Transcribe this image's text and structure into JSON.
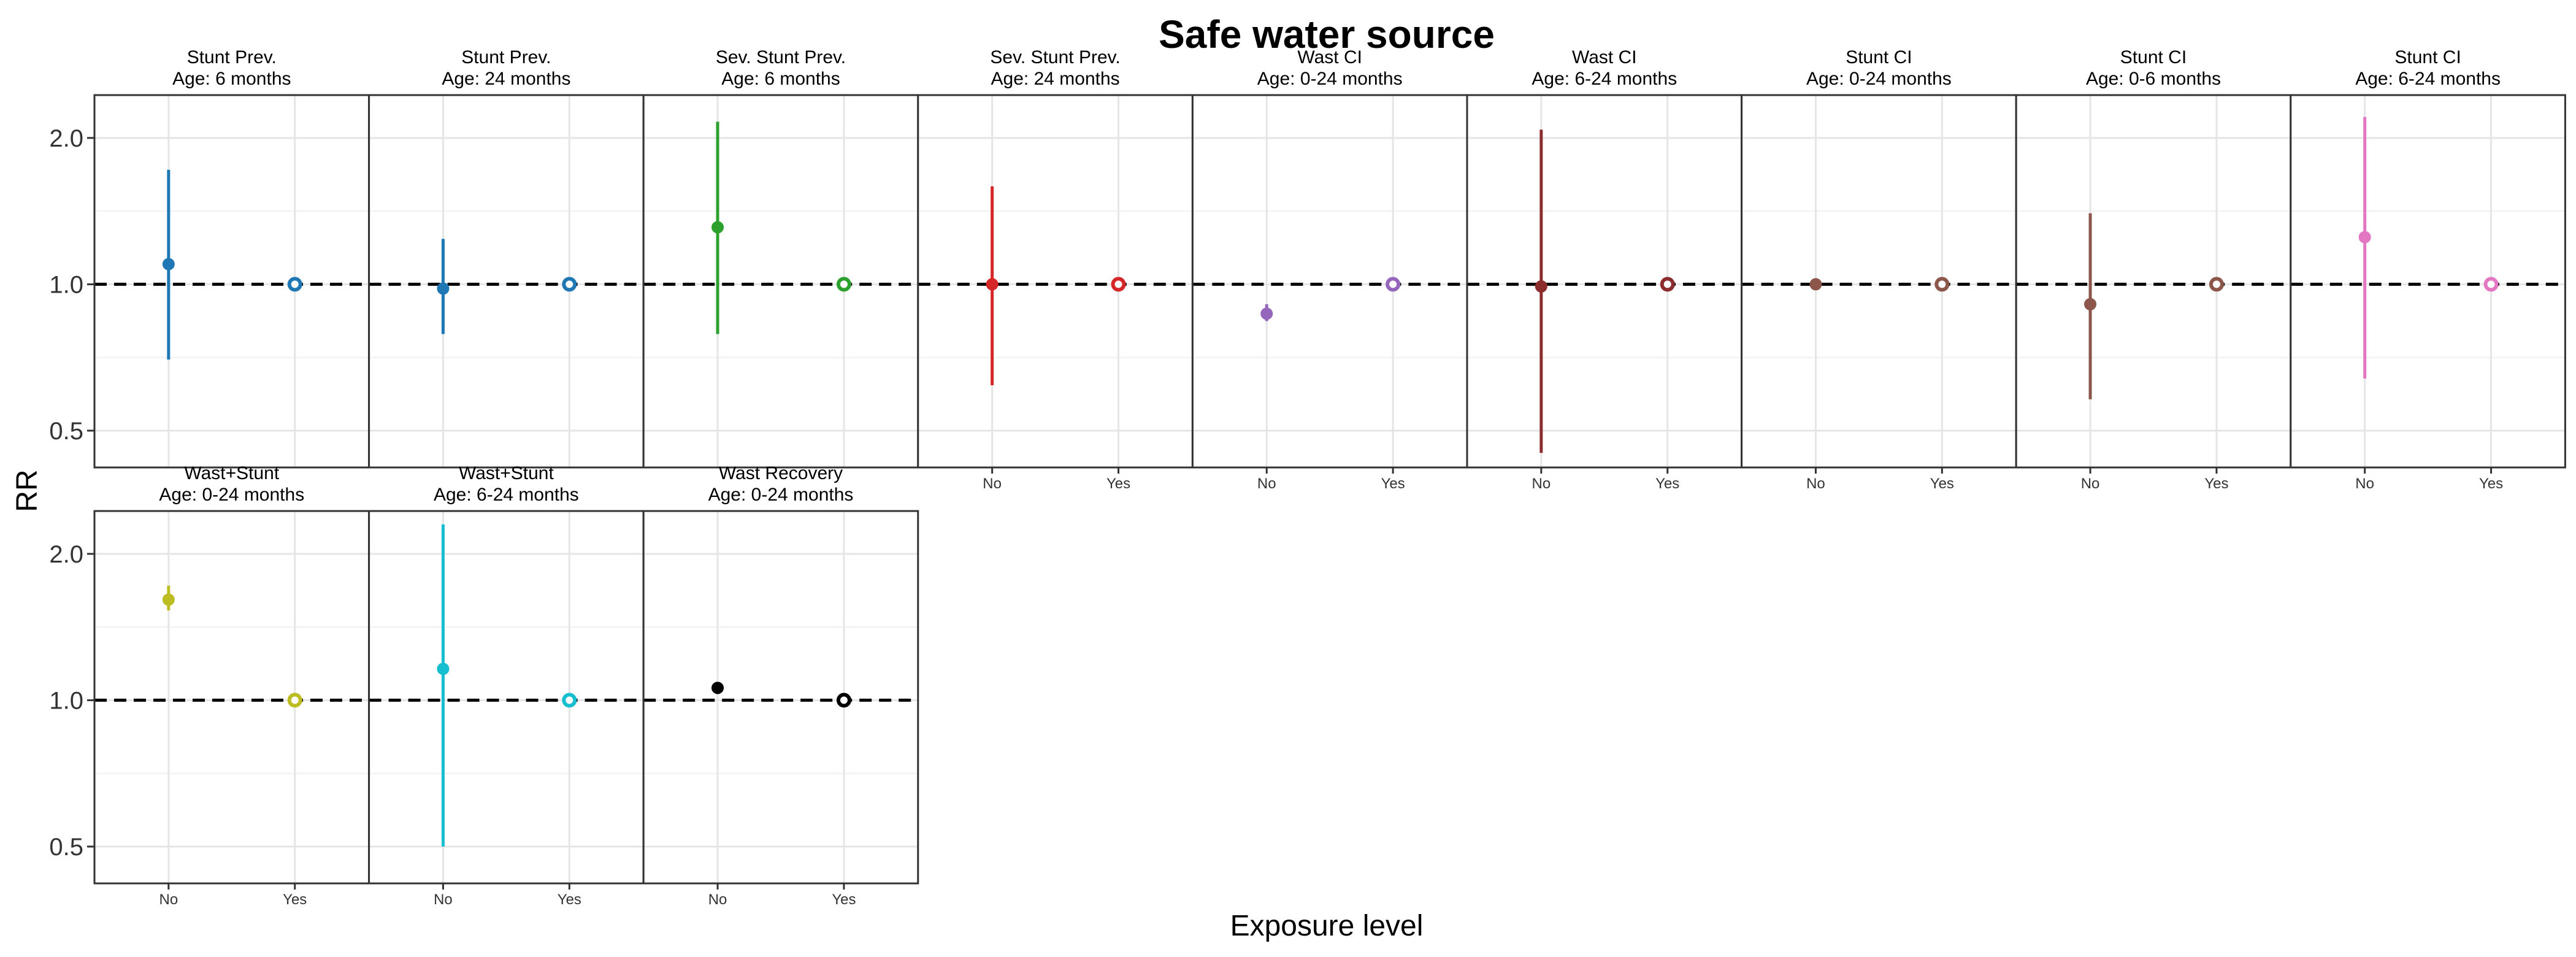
{
  "chart_data": {
    "type": "scatter",
    "title": "Safe water source",
    "xlabel": "Exposure level",
    "ylabel": "RR",
    "y_scale": "log",
    "ylim": [
      0.42,
      2.45
    ],
    "y_ticks": [
      "0.5",
      "1.0",
      "2.0"
    ],
    "y_tick_values": [
      0.5,
      1.0,
      2.0
    ],
    "x_categories": [
      "No",
      "Yes"
    ],
    "reference_line": 1.0,
    "grid": true,
    "legend": "none",
    "panels": [
      {
        "strip": [
          "Stunt Prev.",
          "Age: 6 months"
        ],
        "color": "#1f77b4",
        "points": [
          {
            "x": "No",
            "rr": 1.1,
            "lo": 0.7,
            "hi": 1.72
          },
          {
            "x": "Yes",
            "rr": 1.0,
            "lo": 1.0,
            "hi": 1.0
          }
        ]
      },
      {
        "strip": [
          "Stunt Prev.",
          "Age: 24 months"
        ],
        "color": "#1f77b4",
        "points": [
          {
            "x": "No",
            "rr": 0.98,
            "lo": 0.79,
            "hi": 1.24
          },
          {
            "x": "Yes",
            "rr": 1.0,
            "lo": 1.0,
            "hi": 1.0
          }
        ]
      },
      {
        "strip": [
          "Sev. Stunt Prev.",
          "Age: 6 months"
        ],
        "color": "#2ca02c",
        "points": [
          {
            "x": "No",
            "rr": 1.31,
            "lo": 0.79,
            "hi": 2.16
          },
          {
            "x": "Yes",
            "rr": 1.0,
            "lo": 1.0,
            "hi": 1.0
          }
        ]
      },
      {
        "strip": [
          "Sev. Stunt Prev.",
          "Age: 24 months"
        ],
        "color": "#d62728",
        "points": [
          {
            "x": "No",
            "rr": 1.0,
            "lo": 0.62,
            "hi": 1.59
          },
          {
            "x": "Yes",
            "rr": 1.0,
            "lo": 1.0,
            "hi": 1.0
          }
        ]
      },
      {
        "strip": [
          "Wast CI",
          "Age: 0-24 months"
        ],
        "color": "#9467bd",
        "points": [
          {
            "x": "No",
            "rr": 0.87,
            "lo": 0.84,
            "hi": 0.91
          },
          {
            "x": "Yes",
            "rr": 1.0,
            "lo": 1.0,
            "hi": 1.0
          }
        ]
      },
      {
        "strip": [
          "Wast CI",
          "Age: 6-24 months"
        ],
        "color": "#8c2d2d",
        "points": [
          {
            "x": "No",
            "rr": 0.99,
            "lo": 0.45,
            "hi": 2.08
          },
          {
            "x": "Yes",
            "rr": 1.0,
            "lo": 1.0,
            "hi": 1.0
          }
        ]
      },
      {
        "strip": [
          "Stunt CI",
          "Age: 0-24 months"
        ],
        "color": "#8c564b",
        "points": [
          {
            "x": "No",
            "rr": 1.0,
            "lo": 0.98,
            "hi": 1.02
          },
          {
            "x": "Yes",
            "rr": 1.0,
            "lo": 1.0,
            "hi": 1.0
          }
        ]
      },
      {
        "strip": [
          "Stunt CI",
          "Age: 0-6 months"
        ],
        "color": "#8c564b",
        "points": [
          {
            "x": "No",
            "rr": 0.91,
            "lo": 0.58,
            "hi": 1.4
          },
          {
            "x": "Yes",
            "rr": 1.0,
            "lo": 1.0,
            "hi": 1.0
          }
        ]
      },
      {
        "strip": [
          "Stunt CI",
          "Age: 6-24 months"
        ],
        "color": "#e377c2",
        "points": [
          {
            "x": "No",
            "rr": 1.25,
            "lo": 0.64,
            "hi": 2.21
          },
          {
            "x": "Yes",
            "rr": 1.0,
            "lo": 1.0,
            "hi": 1.0
          }
        ]
      },
      {
        "strip": [
          "Wast+Stunt",
          "Age: 0-24 months"
        ],
        "color": "#bcbd22",
        "points": [
          {
            "x": "No",
            "rr": 1.61,
            "lo": 1.53,
            "hi": 1.72
          },
          {
            "x": "Yes",
            "rr": 1.0,
            "lo": 1.0,
            "hi": 1.0
          }
        ]
      },
      {
        "strip": [
          "Wast+Stunt",
          "Age: 6-24 months"
        ],
        "color": "#17becf",
        "points": [
          {
            "x": "No",
            "rr": 1.16,
            "lo": 0.5,
            "hi": 2.3
          },
          {
            "x": "Yes",
            "rr": 1.0,
            "lo": 1.0,
            "hi": 1.0
          }
        ]
      },
      {
        "strip": [
          "Wast Recovery",
          "Age: 0-24 months"
        ],
        "color": "#000000",
        "points": [
          {
            "x": "No",
            "rr": 1.06,
            "lo": 1.03,
            "hi": 1.09
          },
          {
            "x": "Yes",
            "rr": 1.0,
            "lo": 1.0,
            "hi": 1.0
          }
        ]
      }
    ]
  }
}
